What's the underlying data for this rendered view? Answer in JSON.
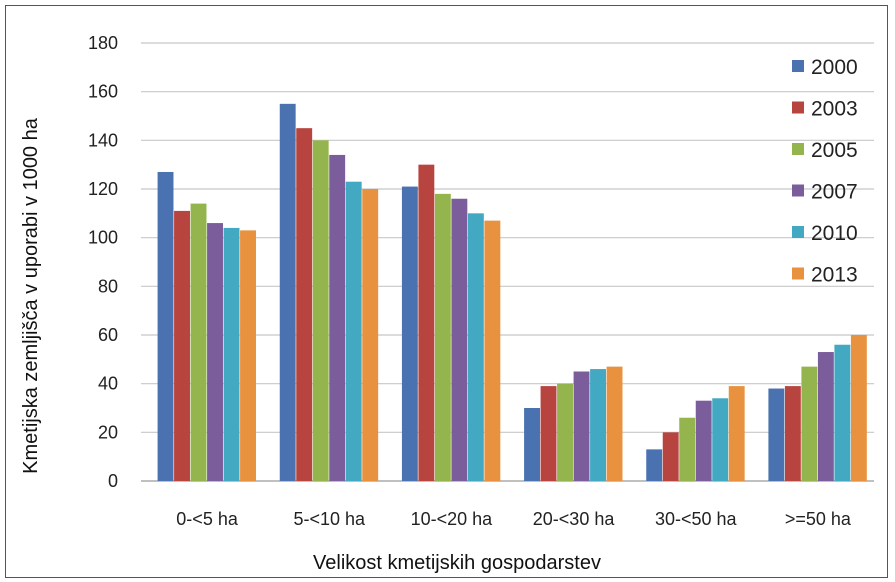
{
  "chart_data": {
    "type": "bar",
    "ylabel": "Kmetijska zemljišča v uporabi v 1000 ha",
    "xlabel": "Velikost kmetijskih gospodarstev",
    "categories": [
      "0-<5 ha",
      "5-<10 ha",
      "10-<20  ha",
      "20-<30  ha",
      "30-<50  ha",
      ">=50 ha"
    ],
    "ylim": [
      0,
      180
    ],
    "yticks": [
      "0",
      "20",
      "40",
      "60",
      "80",
      "100",
      "120",
      "140",
      "160",
      "180"
    ],
    "grid": true,
    "legend_position": "right",
    "series": [
      {
        "name": "2000",
        "color": "#4a72b0",
        "values": [
          127,
          155,
          121,
          30,
          13,
          38
        ]
      },
      {
        "name": "2003",
        "color": "#b8443f",
        "values": [
          111,
          145,
          130,
          39,
          20,
          39
        ]
      },
      {
        "name": "2005",
        "color": "#94b54d",
        "values": [
          114,
          140,
          118,
          40,
          26,
          47
        ]
      },
      {
        "name": "2007",
        "color": "#7b5d9c",
        "values": [
          106,
          134,
          116,
          45,
          33,
          53
        ]
      },
      {
        "name": "2010",
        "color": "#43a8c2",
        "values": [
          104,
          123,
          110,
          46,
          34,
          56
        ]
      },
      {
        "name": "2013",
        "color": "#e8913f",
        "values": [
          103,
          120,
          107,
          47,
          39,
          60
        ]
      }
    ]
  }
}
